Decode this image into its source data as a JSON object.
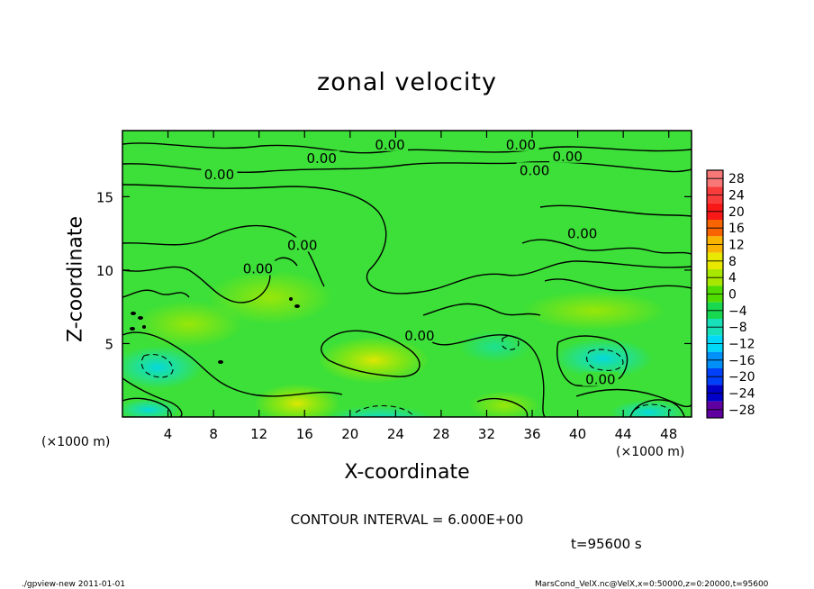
{
  "chart_data": {
    "type": "contour",
    "title": "zonal velocity",
    "xlabel": "X-coordinate",
    "ylabel": "Z-coordinate",
    "x_unit_left": "(×1000 m)",
    "x_unit_right": "(×1000 m)",
    "xlim": [
      0,
      50
    ],
    "ylim": [
      0,
      19.5
    ],
    "xticks": [
      4,
      8,
      12,
      16,
      20,
      24,
      28,
      32,
      36,
      40,
      44,
      48
    ],
    "yticks": [
      5,
      10,
      15
    ],
    "colorbar": {
      "levels": [
        28,
        24,
        20,
        16,
        12,
        8,
        4,
        0,
        -4,
        -8,
        -12,
        -16,
        -20,
        -24,
        -28
      ],
      "labels": [
        "28",
        "24",
        "20",
        "16",
        "12",
        "8",
        "4",
        "0",
        "−4",
        "−8",
        "−12",
        "−16",
        "−20",
        "−24",
        "−28"
      ],
      "colors": [
        "#f87878",
        "#f83c3c",
        "#f81818",
        "#f86400",
        "#f8b400",
        "#e8e800",
        "#a8e800",
        "#50dc00",
        "#18d850",
        "#18e0b8",
        "#00d8f8",
        "#0090f8",
        "#0040f8",
        "#0000c8",
        "#6000a0"
      ]
    },
    "contour_labels": [
      {
        "text": "0.00",
        "x": 23.5,
        "y": 18.35
      },
      {
        "text": "0.00",
        "x": 35.0,
        "y": 18.35
      },
      {
        "text": "0.00",
        "x": 17.5,
        "y": 17.4
      },
      {
        "text": "0.00",
        "x": 39.1,
        "y": 17.55
      },
      {
        "text": "0.00",
        "x": 36.2,
        "y": 16.6
      },
      {
        "text": "0.00",
        "x": 8.5,
        "y": 16.3
      },
      {
        "text": "0.00",
        "x": 40.4,
        "y": 12.3
      },
      {
        "text": "0.00",
        "x": 15.8,
        "y": 11.5
      },
      {
        "text": "0.00",
        "x": 11.9,
        "y": 9.9
      },
      {
        "text": "0.00",
        "x": 26.1,
        "y": 5.35
      },
      {
        "text": "0.00",
        "x": 42.0,
        "y": 2.35
      }
    ],
    "contour_interval": "CONTOUR INTERVAL = 6.000E+00",
    "time": "t=95600 s"
  },
  "footer": {
    "left": "./gpview-new   2011-01-01",
    "right": "MarsCond_VelX.nc@VelX,x=0:50000,z=0:20000,t=95600"
  }
}
